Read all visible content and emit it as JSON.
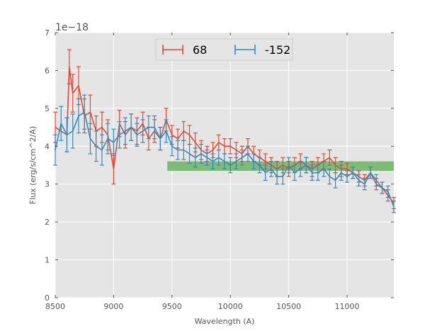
{
  "chart_data": {
    "type": "line",
    "title": "",
    "xlabel": "Wavelength (A)",
    "ylabel": "Flux (erg/s/cm^2/A)",
    "y_offset_label": "1e−18",
    "xlim": [
      8500,
      11400
    ],
    "ylim": [
      0,
      7
    ],
    "x_ticks": [
      8500,
      9000,
      9500,
      10000,
      10500,
      11000
    ],
    "y_ticks": [
      0,
      1,
      2,
      3,
      4,
      5,
      6,
      7
    ],
    "x_tick_labels": [
      "8500",
      "9000",
      "9500",
      "10000",
      "10500",
      "11000"
    ],
    "y_tick_labels": [
      "0",
      "1",
      "2",
      "3",
      "4",
      "5",
      "6",
      "7"
    ],
    "grid": true,
    "legend": "top-center",
    "band": {
      "x_start": 9460,
      "x_end": 11400,
      "y_low": 3.35,
      "y_high": 3.6,
      "color": "#77b870"
    },
    "series": [
      {
        "name": "68",
        "color": "#e24a33",
        "x": [
          8500,
          8600,
          8620,
          8650,
          8700,
          8750,
          8800,
          8850,
          8900,
          8950,
          9000,
          9050,
          9100,
          9150,
          9200,
          9250,
          9300,
          9350,
          9400,
          9450,
          9500,
          9550,
          9600,
          9650,
          9700,
          9750,
          9800,
          9850,
          9900,
          9950,
          10000,
          10050,
          10100,
          10150,
          10200,
          10250,
          10300,
          10350,
          10400,
          10450,
          10500,
          10550,
          10600,
          10650,
          10700,
          10750,
          10800,
          10850,
          10900,
          10950,
          11000,
          11050,
          11100,
          11150,
          11200,
          11250,
          11300,
          11350,
          11400
        ],
        "y": [
          4.5,
          4.3,
          6.1,
          5.4,
          5.6,
          4.8,
          4.9,
          4.4,
          4.5,
          4.3,
          3.4,
          4.6,
          4.3,
          4.5,
          4.4,
          4.6,
          4.2,
          4.4,
          4.2,
          4.7,
          4.3,
          4.2,
          4.4,
          4.3,
          4.1,
          3.9,
          3.8,
          3.9,
          4.1,
          4.0,
          4.0,
          3.9,
          3.8,
          4.0,
          3.8,
          3.7,
          3.6,
          3.5,
          3.4,
          3.5,
          3.4,
          3.5,
          3.6,
          3.5,
          3.4,
          3.5,
          3.6,
          3.7,
          3.5,
          3.4,
          3.4,
          3.3,
          3.2,
          3.1,
          3.3,
          3.0,
          2.9,
          2.7,
          2.5
        ],
        "yerr": [
          0.4,
          0.45,
          0.45,
          0.5,
          0.5,
          0.45,
          0.45,
          0.4,
          0.4,
          0.4,
          0.4,
          0.35,
          0.35,
          0.35,
          0.35,
          0.3,
          0.3,
          0.3,
          0.3,
          0.3,
          0.25,
          0.25,
          0.25,
          0.25,
          0.25,
          0.25,
          0.2,
          0.2,
          0.2,
          0.2,
          0.2,
          0.2,
          0.2,
          0.2,
          0.2,
          0.2,
          0.2,
          0.2,
          0.2,
          0.2,
          0.2,
          0.2,
          0.2,
          0.2,
          0.2,
          0.2,
          0.2,
          0.2,
          0.2,
          0.2,
          0.15,
          0.15,
          0.15,
          0.15,
          0.15,
          0.15,
          0.15,
          0.15,
          0.15
        ]
      },
      {
        "name": "-152",
        "color": "#348abd",
        "x": [
          8500,
          8550,
          8600,
          8650,
          8700,
          8750,
          8800,
          8850,
          8900,
          8950,
          9000,
          9050,
          9100,
          9150,
          9200,
          9250,
          9300,
          9350,
          9400,
          9450,
          9500,
          9550,
          9600,
          9650,
          9700,
          9750,
          9800,
          9850,
          9900,
          9950,
          10000,
          10050,
          10100,
          10150,
          10200,
          10250,
          10300,
          10350,
          10400,
          10450,
          10500,
          10550,
          10600,
          10650,
          10700,
          10750,
          10800,
          10850,
          10900,
          10950,
          11000,
          11050,
          11100,
          11150,
          11200,
          11250,
          11300,
          11350,
          11400
        ],
        "y": [
          3.9,
          4.6,
          4.3,
          4.4,
          4.8,
          4.9,
          4.2,
          4.0,
          3.9,
          4.2,
          4.1,
          4.3,
          4.4,
          4.5,
          4.3,
          4.4,
          4.5,
          4.5,
          4.2,
          4.4,
          4.0,
          3.9,
          3.9,
          3.8,
          3.7,
          3.8,
          3.7,
          3.6,
          3.7,
          3.6,
          3.5,
          3.6,
          3.7,
          3.8,
          3.6,
          3.5,
          3.3,
          3.4,
          3.2,
          3.2,
          3.5,
          3.3,
          3.4,
          3.5,
          3.3,
          3.3,
          3.4,
          3.2,
          3.1,
          3.3,
          3.2,
          3.3,
          3.1,
          3.0,
          3.3,
          3.1,
          2.9,
          2.8,
          2.4
        ],
        "yerr": [
          0.4,
          0.45,
          0.45,
          0.45,
          0.45,
          0.45,
          0.4,
          0.4,
          0.4,
          0.4,
          0.35,
          0.35,
          0.35,
          0.35,
          0.3,
          0.3,
          0.3,
          0.3,
          0.3,
          0.3,
          0.25,
          0.25,
          0.25,
          0.25,
          0.25,
          0.25,
          0.2,
          0.2,
          0.2,
          0.2,
          0.2,
          0.2,
          0.2,
          0.2,
          0.2,
          0.2,
          0.2,
          0.2,
          0.2,
          0.2,
          0.2,
          0.2,
          0.2,
          0.2,
          0.2,
          0.2,
          0.2,
          0.2,
          0.2,
          0.2,
          0.15,
          0.15,
          0.15,
          0.15,
          0.15,
          0.15,
          0.15,
          0.15,
          0.15
        ]
      }
    ]
  }
}
